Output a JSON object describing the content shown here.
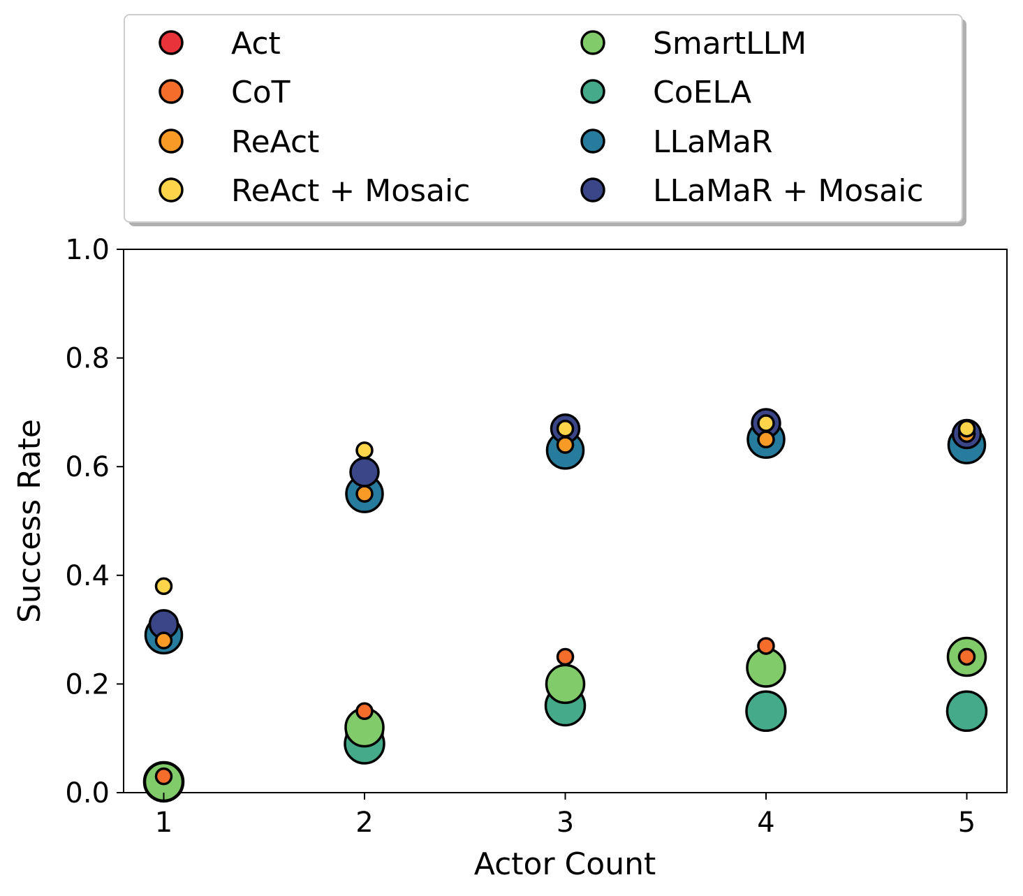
{
  "chart_data": {
    "type": "scatter",
    "xlabel": "Actor Count",
    "ylabel": "Success Rate",
    "x": [
      1,
      2,
      3,
      4,
      5
    ],
    "xticks": [
      "1",
      "2",
      "3",
      "4",
      "5"
    ],
    "yticks": [
      "0.0",
      "0.2",
      "0.4",
      "0.6",
      "0.8",
      "1.0"
    ],
    "xlim": [
      0.8,
      5.2
    ],
    "ylim": [
      0.0,
      1.0
    ],
    "grid": false,
    "legend_position": "top-center",
    "legend_columns": 2,
    "series": [
      {
        "name": "Act",
        "color": "#e8333b",
        "values": [
          0.02,
          0.11,
          0.16,
          0.15,
          0.15
        ]
      },
      {
        "name": "CoT",
        "color": "#f46d2b",
        "values": [
          0.03,
          0.15,
          0.25,
          0.27,
          0.25
        ]
      },
      {
        "name": "ReAct",
        "color": "#f89a26",
        "values": [
          0.28,
          0.55,
          0.64,
          0.65,
          0.66
        ]
      },
      {
        "name": "ReAct + Mosaic",
        "color": "#fdd54a",
        "values": [
          0.38,
          0.63,
          0.67,
          0.68,
          0.67
        ]
      },
      {
        "name": "SmartLLM",
        "color": "#82cb6a",
        "values": [
          0.02,
          0.12,
          0.2,
          0.23,
          0.25
        ]
      },
      {
        "name": "CoELA",
        "color": "#44aa89",
        "values": [
          0.02,
          0.09,
          0.16,
          0.15,
          0.15
        ]
      },
      {
        "name": "LLaMaR",
        "color": "#277c9e",
        "values": [
          0.29,
          0.55,
          0.63,
          0.65,
          0.64
        ]
      },
      {
        "name": "LLaMaR + Mosaic",
        "color": "#3a4687",
        "values": [
          0.31,
          0.59,
          0.67,
          0.68,
          0.66
        ]
      }
    ]
  }
}
